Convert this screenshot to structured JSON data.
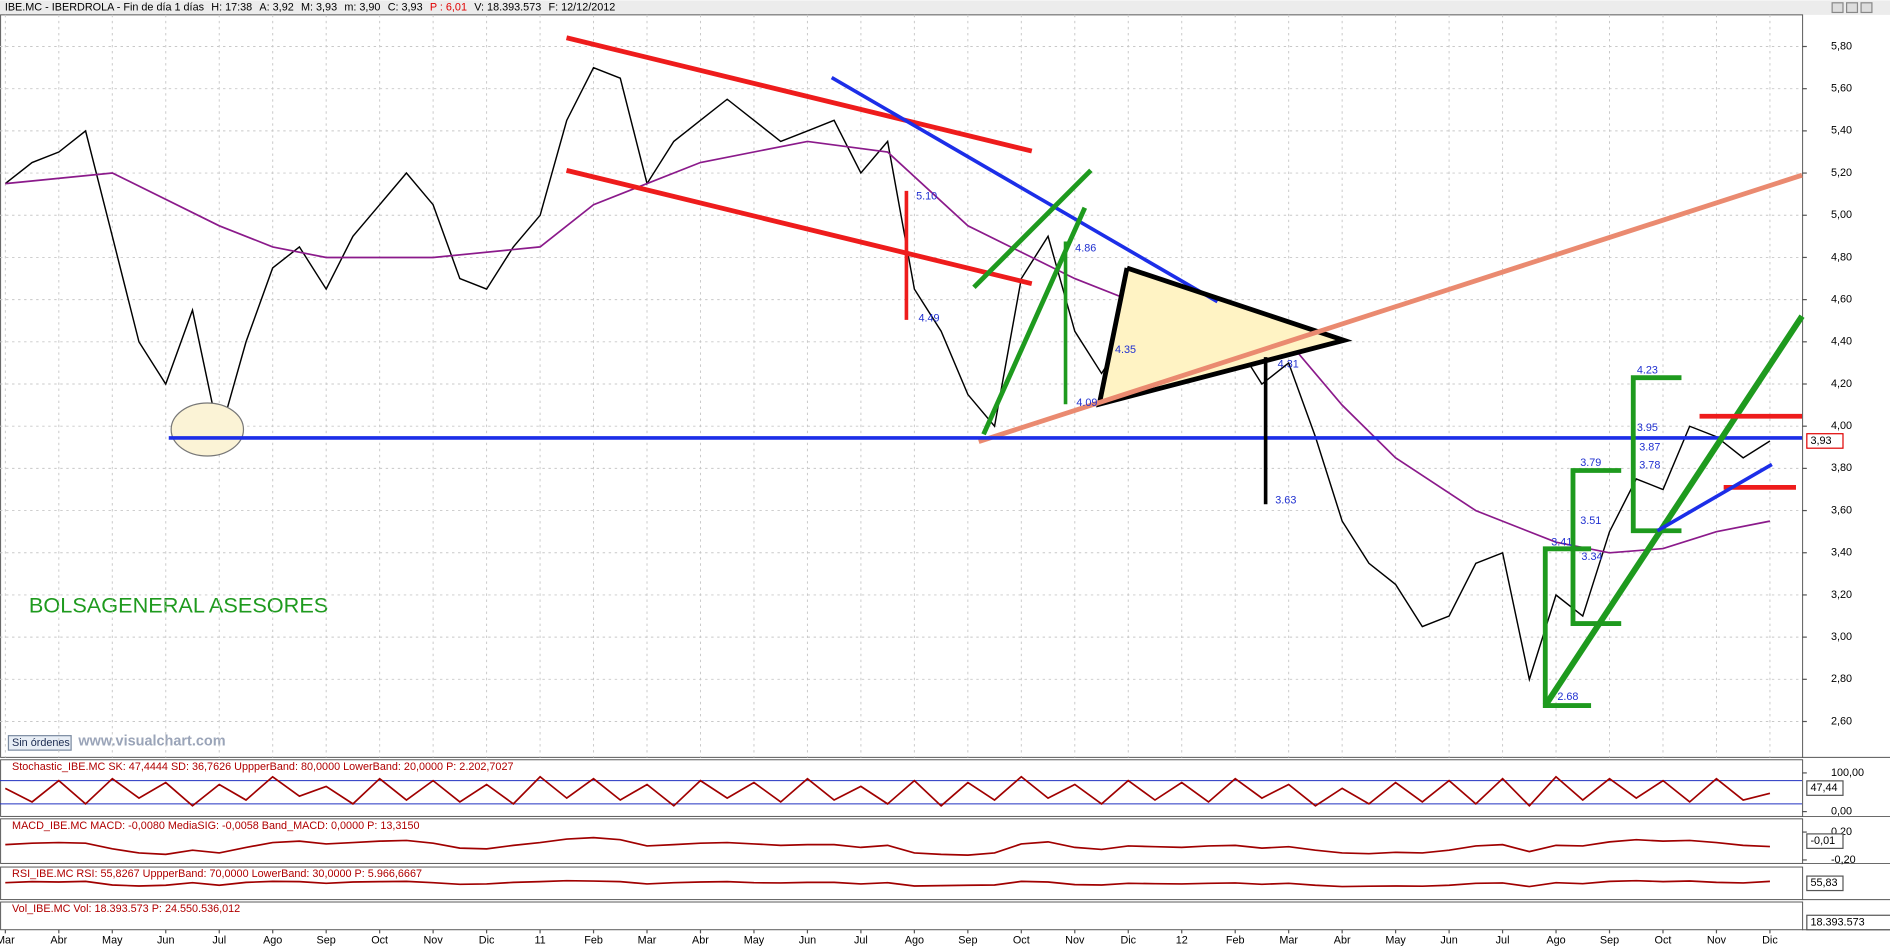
{
  "header": {
    "parts": [
      {
        "text": "IBE.MC - IBERDROLA - Fin de día 1 días",
        "color": "#000000"
      },
      {
        "text": "H: 17:38",
        "color": "#000000"
      },
      {
        "text": "A: 3,92",
        "color": "#000000"
      },
      {
        "text": "M: 3,93",
        "color": "#000000"
      },
      {
        "text": "m: 3,90",
        "color": "#000000"
      },
      {
        "text": "C: 3,93",
        "color": "#000000"
      },
      {
        "text": "P : 6,01",
        "color": "#e00000"
      },
      {
        "text": "V: 18.393.573",
        "color": "#000000"
      },
      {
        "text": "F: 12/12/2012",
        "color": "#000000"
      }
    ]
  },
  "watermark": "BOLSAGENERAL ASESORES",
  "site": "www.visualchart.com",
  "status": "Sin órdenes",
  "chart_data": [
    {
      "type": "line",
      "xlim": [
        -0.1,
        33.6
      ],
      "xticks": [
        {
          "value": 0,
          "label": "Mar"
        },
        {
          "value": 1,
          "label": "Abr"
        },
        {
          "value": 2,
          "label": "May"
        },
        {
          "value": 3,
          "label": "Jun"
        },
        {
          "value": 4,
          "label": "Jul"
        },
        {
          "value": 5,
          "label": "Ago"
        },
        {
          "value": 6,
          "label": "Sep"
        },
        {
          "value": 7,
          "label": "Oct"
        },
        {
          "value": 8,
          "label": "Nov"
        },
        {
          "value": 9,
          "label": "Dic"
        },
        {
          "value": 10,
          "label": "11"
        },
        {
          "value": 11,
          "label": "Feb"
        },
        {
          "value": 12,
          "label": "Mar"
        },
        {
          "value": 13,
          "label": "Abr"
        },
        {
          "value": 14,
          "label": "May"
        },
        {
          "value": 15,
          "label": "Jun"
        },
        {
          "value": 16,
          "label": "Jul"
        },
        {
          "value": 17,
          "label": "Ago"
        },
        {
          "value": 18,
          "label": "Sep"
        },
        {
          "value": 19,
          "label": "Oct"
        },
        {
          "value": 20,
          "label": "Nov"
        },
        {
          "value": 21,
          "label": "Dic"
        },
        {
          "value": 22,
          "label": "12"
        },
        {
          "value": 23,
          "label": "Feb"
        },
        {
          "value": 24,
          "label": "Mar"
        },
        {
          "value": 25,
          "label": "Abr"
        },
        {
          "value": 26,
          "label": "May"
        },
        {
          "value": 27,
          "label": "Jun"
        },
        {
          "value": 28,
          "label": "Jul"
        },
        {
          "value": 29,
          "label": "Ago"
        },
        {
          "value": 30,
          "label": "Sep"
        },
        {
          "value": 31,
          "label": "Oct"
        },
        {
          "value": 32,
          "label": "Nov"
        },
        {
          "value": 33,
          "label": "Dic"
        }
      ],
      "x": [
        0,
        0.5,
        1,
        1.5,
        2,
        2.5,
        3,
        3.5,
        4,
        4.5,
        5,
        5.5,
        6,
        6.5,
        7,
        7.5,
        8,
        8.5,
        9,
        9.5,
        10,
        10.5,
        11,
        11.5,
        12,
        12.5,
        13,
        13.5,
        14,
        14.5,
        15,
        15.5,
        16,
        16.5,
        17,
        17.5,
        18,
        18.5,
        19,
        19.5,
        20,
        20.5,
        21,
        21.5,
        22,
        22.5,
        23,
        23.5,
        24,
        24.5,
        25,
        25.5,
        26,
        26.5,
        27,
        27.5,
        28,
        28.5,
        29,
        29.5,
        30,
        30.5,
        31,
        31.5,
        32,
        32.5,
        33
      ],
      "ylim": [
        2.43,
        5.95
      ],
      "yticks": [
        {
          "value": 2.6,
          "label": "2,60"
        },
        {
          "value": 2.8,
          "label": "2,80"
        },
        {
          "value": 3.0,
          "label": "3,00"
        },
        {
          "value": 3.2,
          "label": "3,20"
        },
        {
          "value": 3.4,
          "label": "3,40"
        },
        {
          "value": 3.6,
          "label": "3,60"
        },
        {
          "value": 3.8,
          "label": "3,80"
        },
        {
          "value": 4.0,
          "label": "4,00"
        },
        {
          "value": 4.2,
          "label": "4,20"
        },
        {
          "value": 4.4,
          "label": "4,40"
        },
        {
          "value": 4.6,
          "label": "4,60"
        },
        {
          "value": 4.8,
          "label": "4,80"
        },
        {
          "value": 5.0,
          "label": "5,00"
        },
        {
          "value": 5.2,
          "label": "5,20"
        },
        {
          "value": 5.4,
          "label": "5,40"
        },
        {
          "value": 5.6,
          "label": "5,60"
        },
        {
          "value": 5.8,
          "label": "5,80"
        }
      ],
      "grid": true,
      "series": [
        {
          "color": "#000000",
          "values": [
            5.15,
            5.25,
            5.3,
            5.4,
            4.9,
            4.4,
            4.2,
            4.55,
            3.95,
            4.4,
            4.75,
            4.85,
            4.65,
            4.9,
            5.05,
            5.2,
            5.05,
            4.7,
            4.65,
            4.85,
            5.0,
            5.45,
            5.7,
            5.65,
            5.15,
            5.35,
            5.45,
            5.55,
            5.45,
            5.35,
            5.4,
            5.45,
            5.2,
            5.35,
            4.65,
            4.45,
            4.15,
            4.0,
            4.7,
            4.9,
            4.45,
            4.25,
            4.45,
            4.35,
            4.3,
            4.35,
            4.4,
            4.2,
            4.3,
            3.95,
            3.55,
            3.35,
            3.25,
            3.05,
            3.1,
            3.35,
            3.4,
            2.8,
            3.2,
            3.1,
            3.5,
            3.75,
            3.7,
            4.0,
            3.95,
            3.85,
            3.93
          ]
        },
        {
          "color": "#8b1a8b",
          "x": [
            0,
            2,
            4,
            5,
            6,
            8,
            10,
            11,
            13,
            15,
            16.5,
            18,
            20,
            22,
            24,
            25,
            26,
            27.5,
            29,
            30,
            31,
            32,
            33
          ],
          "values": [
            5.15,
            5.2,
            4.95,
            4.85,
            4.8,
            4.8,
            4.85,
            5.05,
            5.25,
            5.35,
            5.3,
            4.95,
            4.7,
            4.5,
            4.4,
            4.1,
            3.85,
            3.6,
            3.45,
            3.4,
            3.42,
            3.5,
            3.55
          ]
        }
      ],
      "annotations": [
        "5.10",
        "4.49",
        "4.86",
        "4.09",
        "4.35",
        "4.31",
        "3.63",
        "4.23",
        "3.95",
        "3.87",
        "3.78",
        "3.79",
        "3.51",
        "3.41",
        "3.34",
        "2.68"
      ],
      "last_label": "3,93"
    },
    {
      "type": "line",
      "title": "Stochastic_IBE.MC  SK: 47,4444  SD: 36,7626  UppperBand: 80,0000  LowerBand: 20,0000  P: 2.202,7027",
      "ylim": [
        -12.5,
        134
      ],
      "yticks": [
        {
          "value": 0,
          "label": "0,00"
        },
        {
          "value": 100,
          "label": "100,00"
        }
      ],
      "bands": [
        80,
        20
      ],
      "series": [
        {
          "color": "#a00000",
          "values": [
            60,
            25,
            80,
            20,
            85,
            35,
            75,
            15,
            70,
            30,
            90,
            40,
            65,
            20,
            85,
            30,
            80,
            25,
            70,
            20,
            90,
            35,
            85,
            30,
            70,
            15,
            80,
            35,
            75,
            25,
            85,
            30,
            65,
            20,
            80,
            15,
            75,
            30,
            90,
            35,
            70,
            20,
            80,
            30,
            75,
            25,
            85,
            35,
            70,
            15,
            60,
            20,
            75,
            25,
            80,
            20,
            85,
            15,
            90,
            30,
            85,
            35,
            80,
            25,
            85,
            30,
            47.44
          ]
        }
      ],
      "last_label": "47,44"
    },
    {
      "type": "line",
      "title": "MACD_IBE.MC  MACD: -0,0080  MediaSIG: -0,0058  Band_MACD: 0,0000  P: 13,3150",
      "ylim": [
        -0.25,
        0.39
      ],
      "yticks": [
        {
          "value": -0.2,
          "label": "-0,20"
        },
        {
          "value": 0.2,
          "label": "0,20"
        }
      ],
      "series": [
        {
          "color": "#a00000",
          "values": [
            0.02,
            0.04,
            0.05,
            0.04,
            -0.04,
            -0.1,
            -0.12,
            -0.06,
            -0.1,
            -0.02,
            0.05,
            0.07,
            0.03,
            0.05,
            0.07,
            0.08,
            0.04,
            -0.03,
            -0.04,
            0.01,
            0.05,
            0.1,
            0.12,
            0.09,
            0.0,
            0.02,
            0.04,
            0.05,
            0.03,
            0.01,
            0.02,
            0.02,
            -0.02,
            0.01,
            -0.1,
            -0.12,
            -0.13,
            -0.1,
            0.03,
            0.06,
            -0.02,
            -0.05,
            0.0,
            -0.01,
            -0.02,
            0.0,
            0.01,
            -0.03,
            -0.01,
            -0.06,
            -0.1,
            -0.11,
            -0.09,
            -0.1,
            -0.06,
            0.0,
            0.02,
            -0.08,
            0.01,
            0.0,
            0.06,
            0.09,
            0.07,
            0.08,
            0.05,
            0.01,
            -0.008
          ]
        }
      ],
      "last_label": "-0,01"
    },
    {
      "type": "line",
      "title": "RSI_IBE.MC  RSI: 55,8267  UppperBand: 70,0000  LowerBand: 30,0000  P: 5.966,6667",
      "ylim": [
        0,
        100
      ],
      "yticks": [],
      "series": [
        {
          "color": "#a00000",
          "values": [
            52,
            55,
            54,
            56,
            45,
            42,
            44,
            52,
            44,
            53,
            56,
            55,
            50,
            54,
            55,
            56,
            52,
            47,
            48,
            53,
            55,
            58,
            57,
            55,
            48,
            52,
            54,
            55,
            52,
            51,
            53,
            53,
            48,
            52,
            42,
            43,
            44,
            45,
            56,
            54,
            46,
            45,
            50,
            49,
            48,
            50,
            51,
            47,
            50,
            44,
            40,
            41,
            42,
            41,
            44,
            50,
            51,
            40,
            52,
            49,
            56,
            58,
            55,
            57,
            53,
            51,
            55.83
          ]
        }
      ],
      "last_label": "55,83"
    },
    {
      "type": "volume",
      "title": "Vol_IBE.MC  Vol: 18.393.573  P: 24.550.536,012",
      "last_label": "18.393.573"
    }
  ]
}
